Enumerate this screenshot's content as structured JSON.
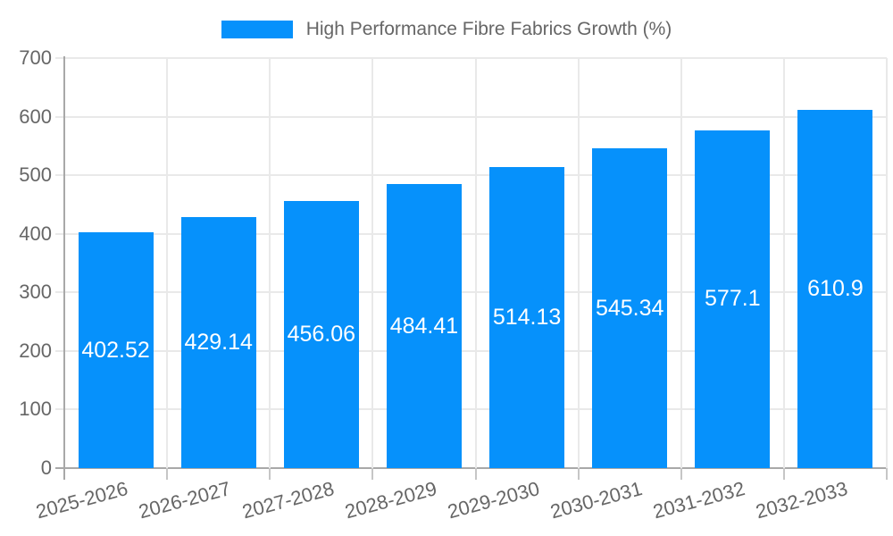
{
  "chart_data": {
    "type": "bar",
    "title": "High Performance Fibre Fabrics Growth (%)",
    "categories": [
      "2025-2026",
      "2026-2027",
      "2027-2028",
      "2028-2029",
      "2029-2030",
      "2030-2031",
      "2031-2032",
      "2032-2033"
    ],
    "values": [
      402.52,
      429.14,
      456.06,
      484.41,
      514.13,
      545.34,
      577.1,
      610.9
    ],
    "value_labels": [
      "402.52",
      "429.14",
      "456.06",
      "484.41",
      "514.13",
      "545.34",
      "577.1",
      "610.9"
    ],
    "xlabel": "",
    "ylabel": "",
    "ylim": [
      0,
      700
    ],
    "yticks": [
      0,
      100,
      200,
      300,
      400,
      500,
      600,
      700
    ],
    "grid": true,
    "legend_position": "top",
    "colors": {
      "bar": "#0691FB",
      "bar_value_text": "#FFFFFF",
      "axis_line": "#A8A8A8",
      "gridline": "#E9E9E9",
      "tick": "#C6C6C6",
      "label_text": "#666666"
    }
  }
}
